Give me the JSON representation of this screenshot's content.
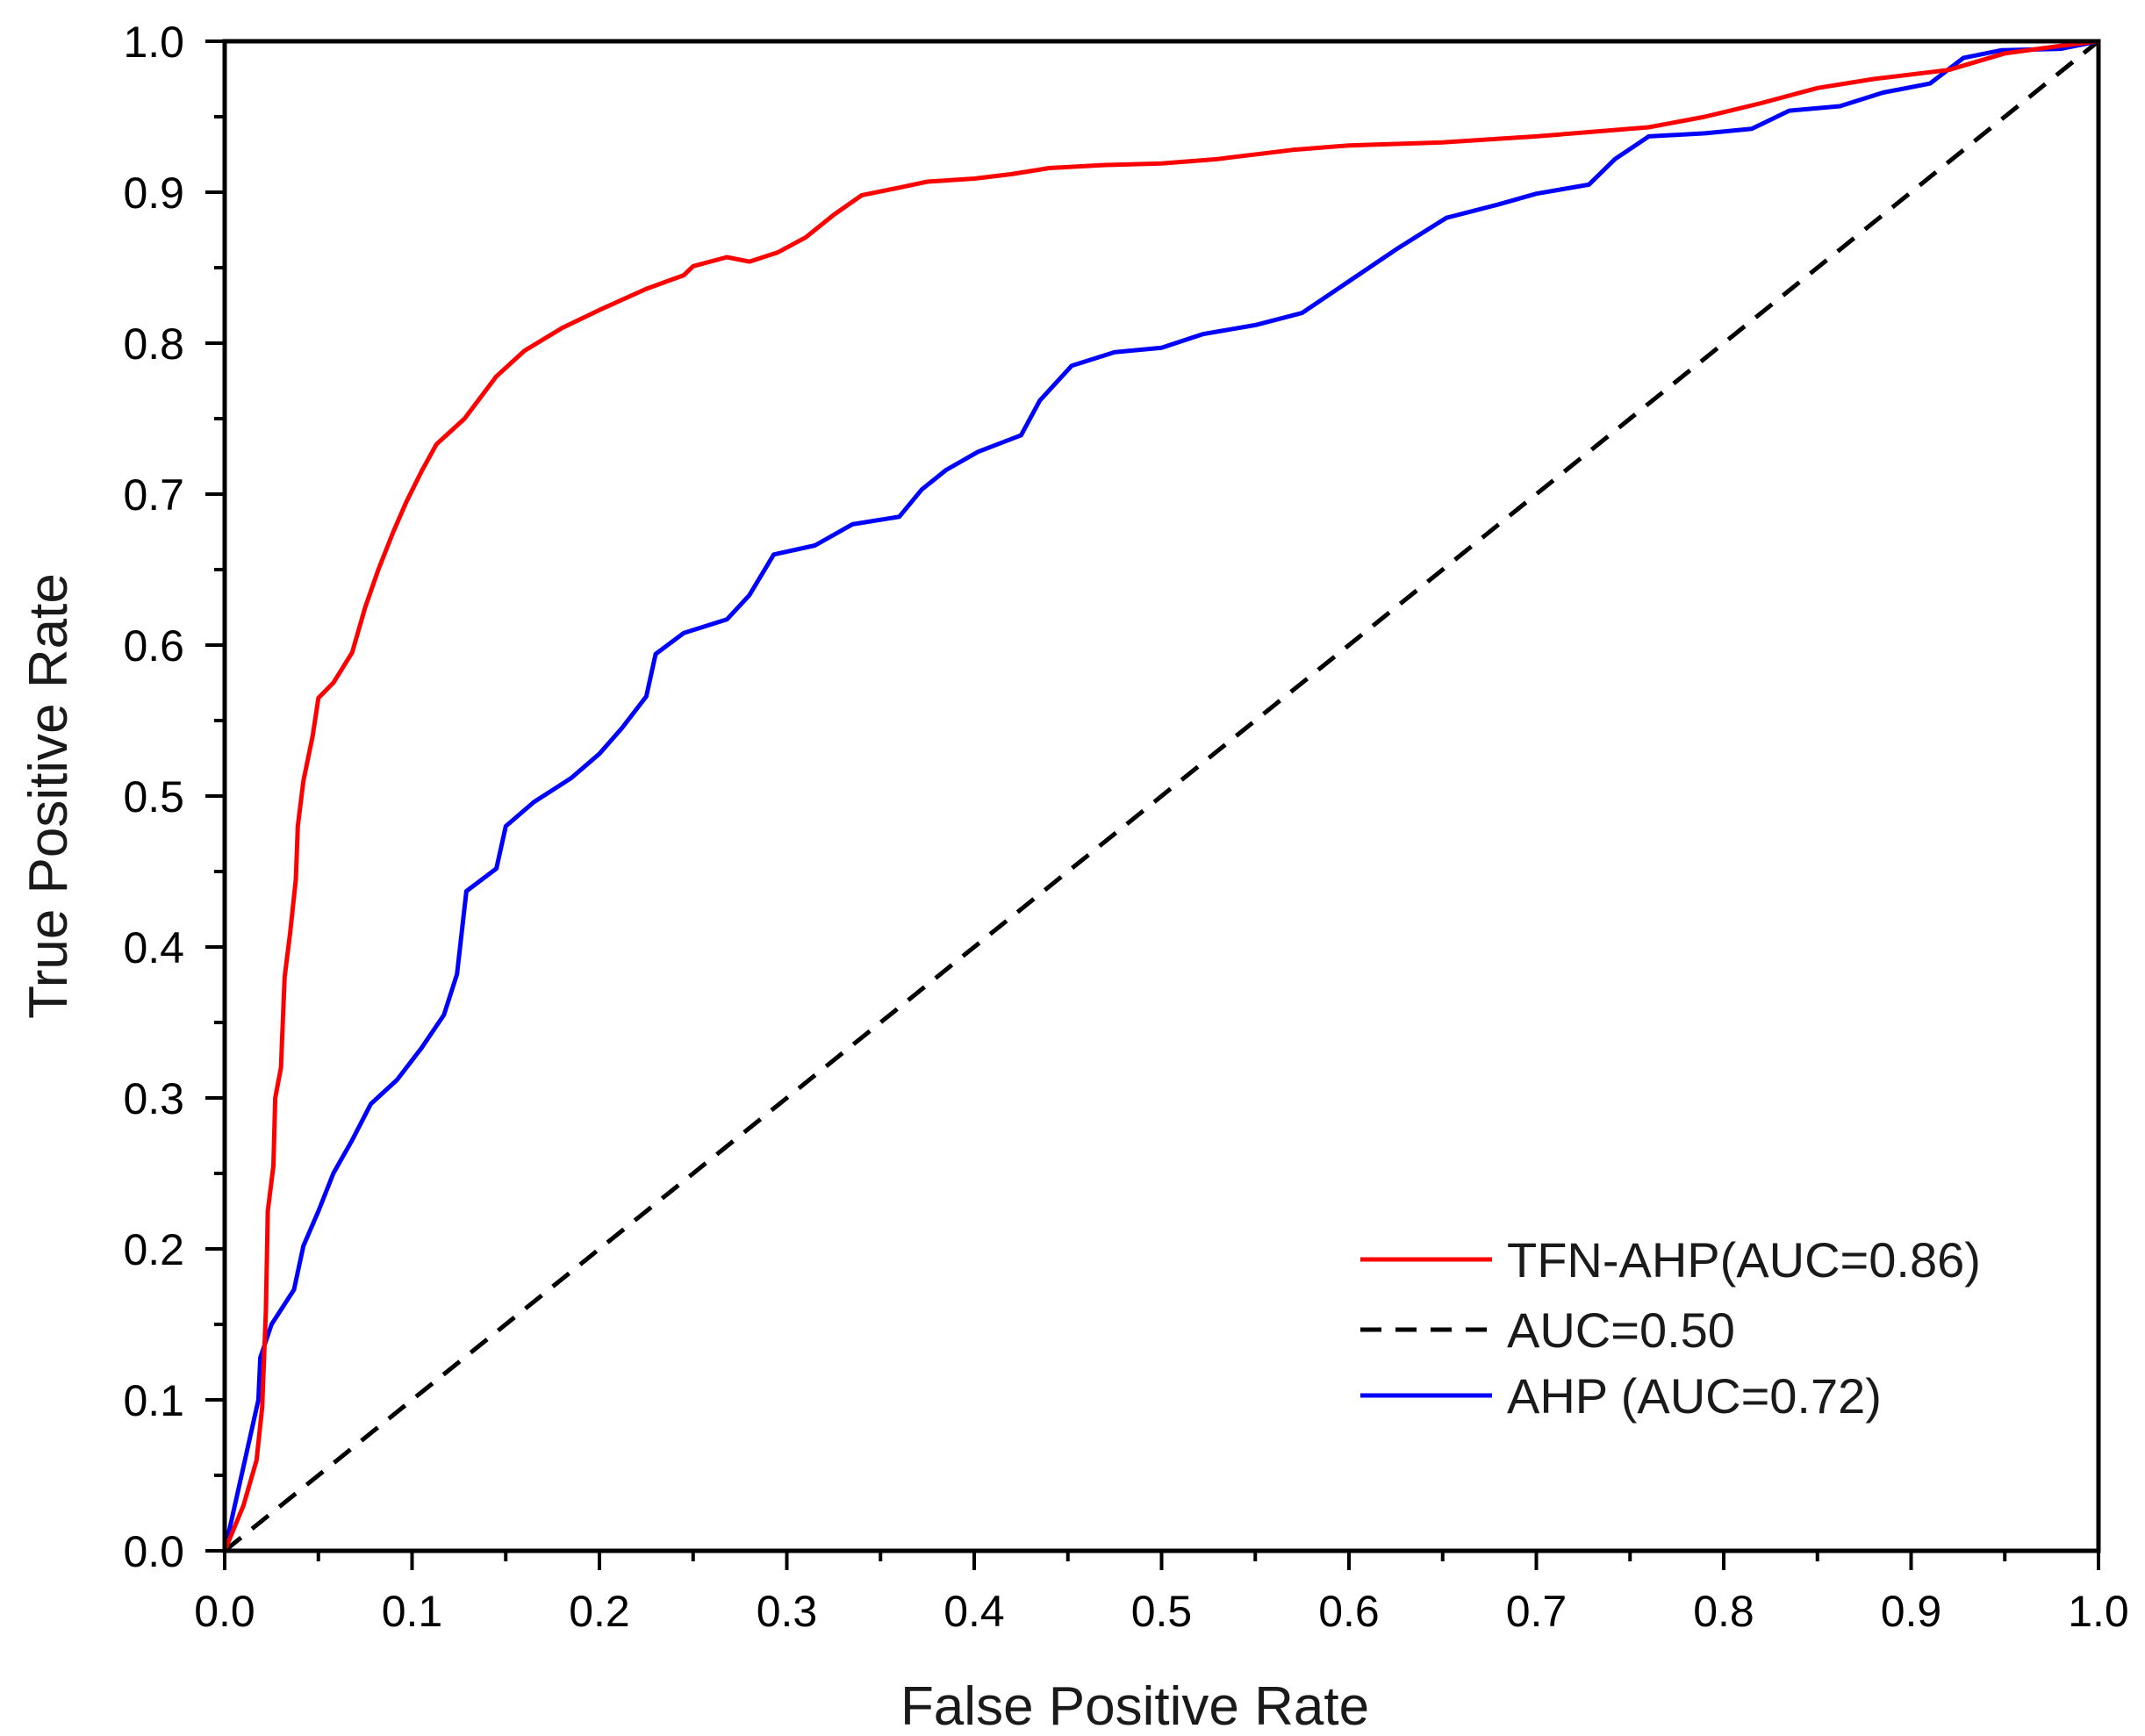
{
  "chart_data": {
    "type": "line",
    "title": "",
    "xlabel": "False Positive Rate",
    "ylabel": "True Positive Rate",
    "xlim": [
      0,
      1
    ],
    "ylim": [
      0,
      1
    ],
    "grid": false,
    "legend_position": "bottom-right",
    "xticks": [
      "0.0",
      "0.1",
      "0.2",
      "0.3",
      "0.4",
      "0.5",
      "0.6",
      "0.7",
      "0.8",
      "0.9",
      "1.0"
    ],
    "yticks": [
      "0.0",
      "0.1",
      "0.2",
      "0.3",
      "0.4",
      "0.5",
      "0.6",
      "0.7",
      "0.8",
      "0.9",
      "1.0"
    ],
    "series": [
      {
        "name": "TFN-AHP(AUC=0.86)",
        "color": "#ff0000",
        "style": "solid",
        "points": [
          [
            0.0,
            0.0
          ],
          [
            0.01,
            0.03
          ],
          [
            0.017,
            0.06
          ],
          [
            0.02,
            0.095
          ],
          [
            0.022,
            0.16
          ],
          [
            0.023,
            0.225
          ],
          [
            0.026,
            0.255
          ],
          [
            0.027,
            0.3
          ],
          [
            0.03,
            0.32
          ],
          [
            0.032,
            0.38
          ],
          [
            0.035,
            0.41
          ],
          [
            0.038,
            0.445
          ],
          [
            0.039,
            0.48
          ],
          [
            0.042,
            0.51
          ],
          [
            0.047,
            0.54
          ],
          [
            0.05,
            0.565
          ],
          [
            0.058,
            0.575
          ],
          [
            0.068,
            0.595
          ],
          [
            0.075,
            0.625
          ],
          [
            0.082,
            0.65
          ],
          [
            0.09,
            0.675
          ],
          [
            0.097,
            0.695
          ],
          [
            0.105,
            0.715
          ],
          [
            0.113,
            0.733
          ],
          [
            0.128,
            0.75
          ],
          [
            0.145,
            0.778
          ],
          [
            0.16,
            0.795
          ],
          [
            0.18,
            0.81
          ],
          [
            0.2,
            0.822
          ],
          [
            0.225,
            0.836
          ],
          [
            0.245,
            0.845
          ],
          [
            0.25,
            0.851
          ],
          [
            0.268,
            0.857
          ],
          [
            0.28,
            0.854
          ],
          [
            0.295,
            0.86
          ],
          [
            0.31,
            0.87
          ],
          [
            0.325,
            0.885
          ],
          [
            0.34,
            0.898
          ],
          [
            0.36,
            0.903
          ],
          [
            0.375,
            0.907
          ],
          [
            0.4,
            0.909
          ],
          [
            0.42,
            0.912
          ],
          [
            0.44,
            0.916
          ],
          [
            0.47,
            0.918
          ],
          [
            0.5,
            0.919
          ],
          [
            0.53,
            0.922
          ],
          [
            0.57,
            0.928
          ],
          [
            0.6,
            0.931
          ],
          [
            0.65,
            0.933
          ],
          [
            0.7,
            0.937
          ],
          [
            0.76,
            0.943
          ],
          [
            0.79,
            0.95
          ],
          [
            0.82,
            0.959
          ],
          [
            0.85,
            0.969
          ],
          [
            0.88,
            0.975
          ],
          [
            0.92,
            0.981
          ],
          [
            0.95,
            0.992
          ],
          [
            0.98,
            0.997
          ],
          [
            1.0,
            1.0
          ]
        ]
      },
      {
        "name": "AUC=0.50",
        "color": "#000000",
        "style": "dashed",
        "points": [
          [
            0.0,
            0.0
          ],
          [
            1.0,
            1.0
          ]
        ]
      },
      {
        "name": "AHP (AUC=0.72)",
        "color": "#0000ff",
        "style": "solid",
        "points": [
          [
            0.0,
            0.0
          ],
          [
            0.018,
            0.1
          ],
          [
            0.019,
            0.128
          ],
          [
            0.025,
            0.15
          ],
          [
            0.037,
            0.173
          ],
          [
            0.042,
            0.202
          ],
          [
            0.05,
            0.225
          ],
          [
            0.058,
            0.25
          ],
          [
            0.068,
            0.272
          ],
          [
            0.078,
            0.296
          ],
          [
            0.092,
            0.312
          ],
          [
            0.105,
            0.333
          ],
          [
            0.117,
            0.355
          ],
          [
            0.124,
            0.382
          ],
          [
            0.129,
            0.437
          ],
          [
            0.145,
            0.452
          ],
          [
            0.15,
            0.48
          ],
          [
            0.165,
            0.496
          ],
          [
            0.185,
            0.512
          ],
          [
            0.2,
            0.528
          ],
          [
            0.212,
            0.545
          ],
          [
            0.225,
            0.566
          ],
          [
            0.23,
            0.594
          ],
          [
            0.245,
            0.608
          ],
          [
            0.268,
            0.617
          ],
          [
            0.28,
            0.633
          ],
          [
            0.293,
            0.66
          ],
          [
            0.315,
            0.666
          ],
          [
            0.335,
            0.68
          ],
          [
            0.36,
            0.685
          ],
          [
            0.372,
            0.703
          ],
          [
            0.385,
            0.716
          ],
          [
            0.402,
            0.728
          ],
          [
            0.425,
            0.739
          ],
          [
            0.435,
            0.762
          ],
          [
            0.452,
            0.785
          ],
          [
            0.475,
            0.794
          ],
          [
            0.5,
            0.797
          ],
          [
            0.522,
            0.806
          ],
          [
            0.55,
            0.812
          ],
          [
            0.575,
            0.82
          ],
          [
            0.6,
            0.841
          ],
          [
            0.625,
            0.862
          ],
          [
            0.652,
            0.883
          ],
          [
            0.68,
            0.892
          ],
          [
            0.7,
            0.899
          ],
          [
            0.728,
            0.905
          ],
          [
            0.742,
            0.922
          ],
          [
            0.76,
            0.937
          ],
          [
            0.79,
            0.939
          ],
          [
            0.815,
            0.942
          ],
          [
            0.835,
            0.954
          ],
          [
            0.862,
            0.957
          ],
          [
            0.885,
            0.966
          ],
          [
            0.91,
            0.972
          ],
          [
            0.928,
            0.989
          ],
          [
            0.948,
            0.994
          ],
          [
            0.98,
            0.995
          ],
          [
            1.0,
            1.0
          ]
        ]
      }
    ]
  }
}
